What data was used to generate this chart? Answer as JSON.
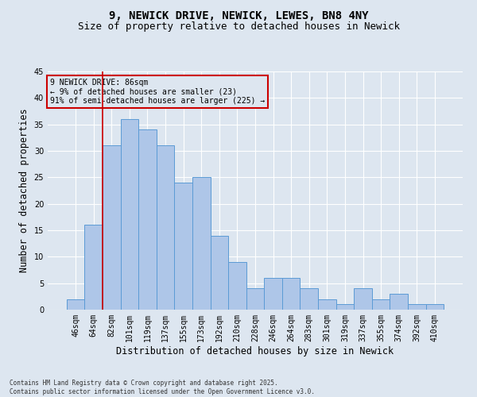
{
  "title1": "9, NEWICK DRIVE, NEWICK, LEWES, BN8 4NY",
  "title2": "Size of property relative to detached houses in Newick",
  "xlabel": "Distribution of detached houses by size in Newick",
  "ylabel": "Number of detached properties",
  "categories": [
    "46sqm",
    "64sqm",
    "82sqm",
    "101sqm",
    "119sqm",
    "137sqm",
    "155sqm",
    "173sqm",
    "192sqm",
    "210sqm",
    "228sqm",
    "246sqm",
    "264sqm",
    "283sqm",
    "301sqm",
    "319sqm",
    "337sqm",
    "355sqm",
    "374sqm",
    "392sqm",
    "410sqm"
  ],
  "values": [
    2,
    16,
    31,
    36,
    34,
    31,
    24,
    25,
    14,
    9,
    4,
    6,
    6,
    4,
    2,
    1,
    4,
    2,
    3,
    1,
    1
  ],
  "bar_color": "#aec6e8",
  "bar_edge_color": "#5b9bd5",
  "bg_color": "#dde6f0",
  "grid_color": "#ffffff",
  "vline_color": "#cc0000",
  "annotation_text": "9 NEWICK DRIVE: 86sqm\n← 9% of detached houses are smaller (23)\n91% of semi-detached houses are larger (225) →",
  "annotation_box_color": "#cc0000",
  "ylim": [
    0,
    45
  ],
  "yticks": [
    0,
    5,
    10,
    15,
    20,
    25,
    30,
    35,
    40,
    45
  ],
  "footer": "Contains HM Land Registry data © Crown copyright and database right 2025.\nContains public sector information licensed under the Open Government Licence v3.0.",
  "title_fontsize": 10,
  "subtitle_fontsize": 9,
  "tick_fontsize": 7,
  "label_fontsize": 8.5,
  "footer_fontsize": 5.5
}
